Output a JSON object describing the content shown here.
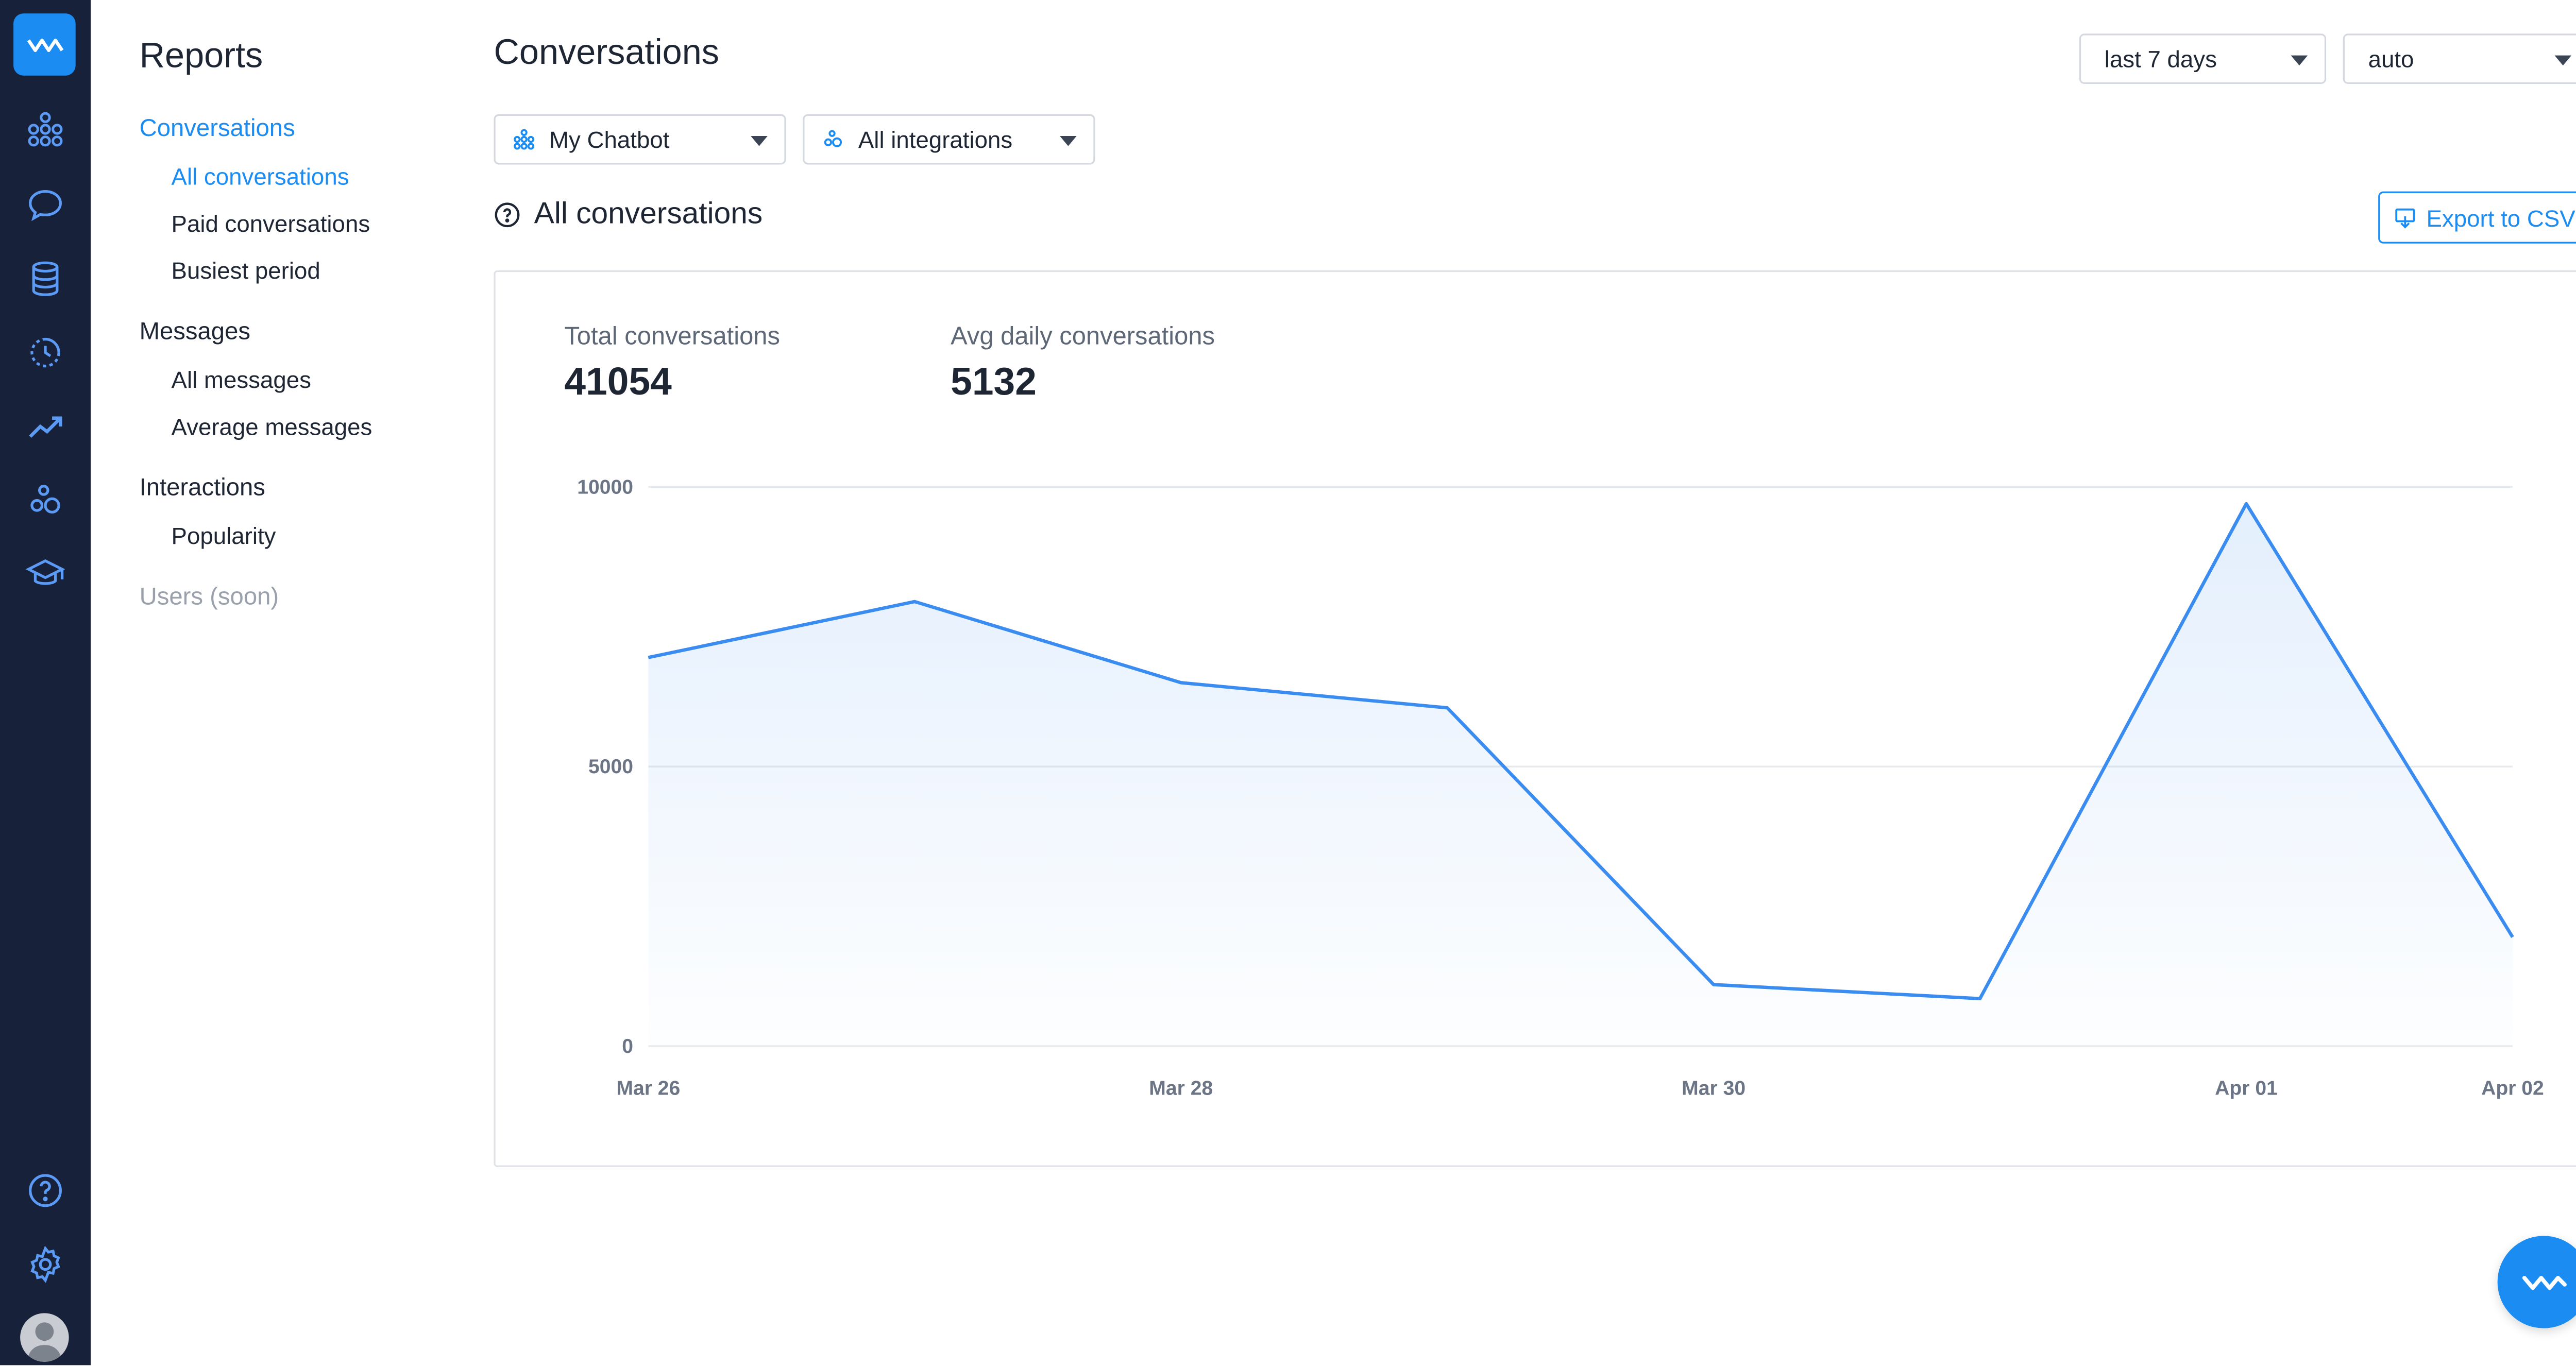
{
  "sidebar": {
    "title": "Reports",
    "groups": [
      {
        "label": "Conversations",
        "items": [
          "All conversations",
          "Paid conversations",
          "Busiest period"
        ]
      },
      {
        "label": "Messages",
        "items": [
          "All messages",
          "Average messages"
        ]
      },
      {
        "label": "Interactions",
        "items": [
          "Popularity"
        ]
      },
      {
        "label": "Users (soon)",
        "items": []
      }
    ]
  },
  "header": {
    "title": "Conversations",
    "period_select": "last 7 days",
    "interval_select": "auto",
    "chatbot_select": "My Chatbot",
    "integration_select": "All integrations"
  },
  "section": {
    "title": "All conversations",
    "export_label": "Export to CSV"
  },
  "stats": {
    "total_label": "Total conversations",
    "total_value": "41054",
    "avg_label": "Avg daily conversations",
    "avg_value": "5132"
  },
  "colors": {
    "accent": "#1b8cf2",
    "rail": "#17213a",
    "line": "#3b8cf0"
  },
  "chart_data": {
    "type": "area",
    "x": [
      "Mar 26",
      "Mar 27",
      "Mar 28",
      "Mar 29",
      "Mar 30",
      "Mar 31",
      "Apr 01",
      "Apr 02"
    ],
    "y": [
      6950,
      7950,
      6500,
      6050,
      1100,
      850,
      9700,
      1950
    ],
    "x_tick_labels": [
      "Mar 26",
      "Mar 28",
      "Mar 30",
      "Apr 01",
      "Apr 02"
    ],
    "y_ticks": [
      0,
      5000,
      10000
    ],
    "ylim": [
      0,
      10000
    ],
    "grid": true
  }
}
